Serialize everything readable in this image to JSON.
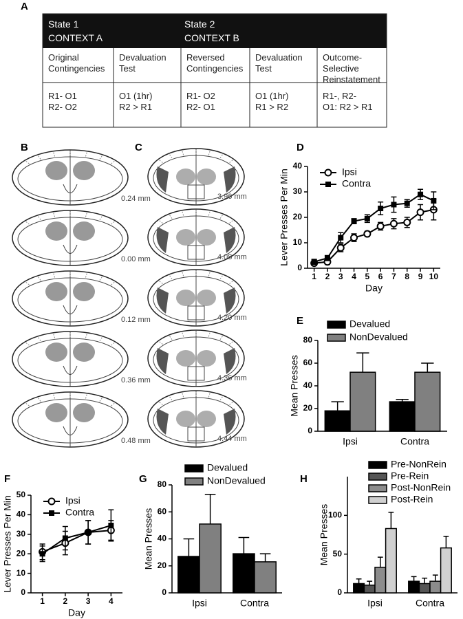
{
  "panel_labels": [
    "A",
    "B",
    "C",
    "D",
    "E",
    "F",
    "G",
    "H"
  ],
  "table": {
    "header": [
      [
        "State 1",
        "CONTEXT A"
      ],
      [
        "State 2",
        "CONTEXT B"
      ]
    ],
    "rows": [
      [
        [
          "Original",
          "Contingencies"
        ],
        [
          "Devaluation",
          "Test"
        ],
        [
          "Reversed",
          "Contingencies"
        ],
        [
          "Devaluation",
          "Test"
        ],
        [
          "Outcome-",
          "Selective",
          "Reinstatement"
        ]
      ],
      [
        [
          "R1- O1",
          "R2- O2"
        ],
        [
          "O1 (1hr)",
          "R2 > R1"
        ],
        [
          "R1- O2",
          "R2- O1"
        ],
        [
          "O1 (1hr)",
          "R1 > R2"
        ],
        [
          "R1-, R2-",
          "O1: R2 > R1"
        ]
      ]
    ]
  },
  "brain_sections": {
    "B": [
      "0.24 mm",
      "0.00 mm",
      "0.12 mm",
      "0.36 mm",
      "0.48 mm"
    ],
    "C": [
      "3.96 mm",
      "4.08 mm",
      "4.20 mm",
      "4.36 mm",
      "4.44 mm"
    ]
  },
  "chart_data": [
    {
      "type": "line",
      "xlabel": "Day",
      "ylabel": "Lever Presses Per Min",
      "x": [
        1,
        2,
        3,
        4,
        5,
        6,
        7,
        8,
        9,
        10
      ],
      "xlim": [
        0.5,
        10.5
      ],
      "xticks": [
        1,
        2,
        3,
        4,
        5,
        6,
        7,
        8,
        9,
        10
      ],
      "ylim": [
        0,
        40
      ],
      "yticks": [
        0,
        10,
        20,
        30,
        40
      ],
      "legend": "upper left",
      "series": [
        {
          "name": "Ipsi",
          "color": "#000000",
          "marker": "open-circle",
          "values": [
            2,
            2.5,
            8,
            12,
            13.5,
            16.5,
            17.5,
            18,
            22,
            23
          ],
          "errors": [
            1,
            1,
            1.5,
            1.5,
            1,
            1.5,
            2,
            2,
            3,
            4
          ]
        },
        {
          "name": "Contra",
          "color": "#000000",
          "marker": "square",
          "values": [
            2.5,
            4,
            12,
            18.5,
            19.5,
            23.5,
            25,
            25.5,
            29,
            26.5
          ],
          "errors": [
            1,
            1,
            2,
            1,
            1.5,
            2.5,
            3,
            1.5,
            2,
            3.5
          ]
        }
      ]
    },
    {
      "type": "bar",
      "ylabel": "Mean Presses",
      "categories": [
        "Ipsi",
        "Contra"
      ],
      "ylim": [
        0,
        80
      ],
      "yticks": [
        0,
        20,
        40,
        60,
        80
      ],
      "legend": "above",
      "series": [
        {
          "name": "Devalued",
          "color": "#000000",
          "values": [
            18,
            26
          ],
          "errors": [
            8,
            2
          ]
        },
        {
          "name": "NonDevalued",
          "color": "#808080",
          "values": [
            52,
            52
          ],
          "errors": [
            17,
            8
          ]
        }
      ]
    },
    {
      "type": "line",
      "xlabel": "Day",
      "ylabel": "Lever Presses Per Min",
      "x": [
        1,
        2,
        3,
        4
      ],
      "xlim": [
        0.5,
        4.5
      ],
      "xticks": [
        1,
        2,
        3,
        4
      ],
      "ylim": [
        0,
        50
      ],
      "yticks": [
        0,
        10,
        20,
        30,
        40,
        50
      ],
      "legend": "upper left",
      "series": [
        {
          "name": "Ipsi",
          "color": "#000000",
          "marker": "open-circle",
          "values": [
            21,
            25.5,
            31,
            32
          ],
          "errors": [
            4,
            6,
            6,
            5
          ]
        },
        {
          "name": "Contra",
          "color": "#000000",
          "marker": "square",
          "values": [
            20,
            28,
            31,
            34.5
          ],
          "errors": [
            4,
            6,
            6,
            8
          ]
        }
      ]
    },
    {
      "type": "bar",
      "ylabel": "Mean Presses",
      "categories": [
        "Ipsi",
        "Contra"
      ],
      "ylim": [
        0,
        80
      ],
      "yticks": [
        0,
        20,
        40,
        60,
        80
      ],
      "legend": "above",
      "series": [
        {
          "name": "Devalued",
          "color": "#000000",
          "values": [
            27,
            29
          ],
          "errors": [
            13,
            12
          ]
        },
        {
          "name": "NonDevalued",
          "color": "#808080",
          "values": [
            51,
            23
          ],
          "errors": [
            22,
            6
          ]
        }
      ]
    },
    {
      "type": "bar",
      "ylabel": "Mean Presses",
      "categories": [
        "Ipsi",
        "Contra"
      ],
      "ylim": [
        0,
        150
      ],
      "yticks": [
        0,
        50,
        100
      ],
      "legend": "above",
      "series": [
        {
          "name": "Pre-NonRein",
          "color": "#000000",
          "values": [
            12,
            15
          ],
          "errors": [
            6,
            6
          ]
        },
        {
          "name": "Pre-Rein",
          "color": "#555555",
          "values": [
            10,
            12
          ],
          "errors": [
            5,
            7
          ]
        },
        {
          "name": "Post-NonRein",
          "color": "#8c8c8c",
          "values": [
            33,
            15
          ],
          "errors": [
            13,
            8
          ]
        },
        {
          "name": "Post-Rein",
          "color": "#d0d0d0",
          "values": [
            83,
            58
          ],
          "errors": [
            21,
            15
          ]
        }
      ]
    }
  ]
}
